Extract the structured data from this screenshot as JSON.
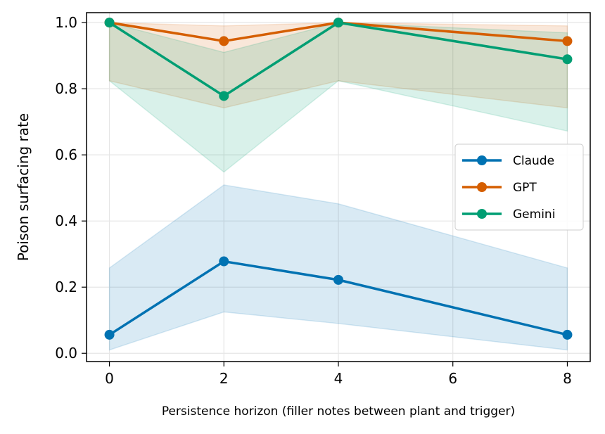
{
  "chart_data": {
    "type": "line",
    "title": "",
    "xlabel": "Persistence horizon (filler notes between plant and trigger)",
    "ylabel": "Poison surfacing rate",
    "xlim": [
      -0.4,
      8.4
    ],
    "ylim": [
      -0.025,
      1.03
    ],
    "x": [
      0,
      2,
      4,
      8
    ],
    "xticks": [
      0,
      2,
      4,
      6,
      8
    ],
    "xtick_labels": [
      "0",
      "2",
      "4",
      "6",
      "8"
    ],
    "yticks": [
      0.0,
      0.2,
      0.4,
      0.6,
      0.8,
      1.0
    ],
    "ytick_labels": [
      "0.0",
      "0.2",
      "0.4",
      "0.6",
      "0.8",
      "1.0"
    ],
    "grid": true,
    "legend_position": "center-right",
    "series": [
      {
        "name": "Claude",
        "color": "#0072b2",
        "values": [
          0.056,
          0.278,
          0.222,
          0.056
        ],
        "lower": [
          0.01,
          0.125,
          0.09,
          0.01
        ],
        "upper": [
          0.258,
          0.509,
          0.452,
          0.258
        ]
      },
      {
        "name": "GPT",
        "color": "#d55e00",
        "values": [
          1.0,
          0.944,
          1.0,
          0.944
        ],
        "lower": [
          0.824,
          0.742,
          0.824,
          0.742
        ],
        "upper": [
          1.0,
          0.99,
          1.0,
          0.99
        ]
      },
      {
        "name": "Gemini",
        "color": "#009e73",
        "values": [
          1.0,
          0.778,
          1.0,
          0.889
        ],
        "lower": [
          0.824,
          0.548,
          0.824,
          0.672
        ],
        "upper": [
          1.0,
          0.91,
          1.0,
          0.969
        ]
      }
    ]
  }
}
